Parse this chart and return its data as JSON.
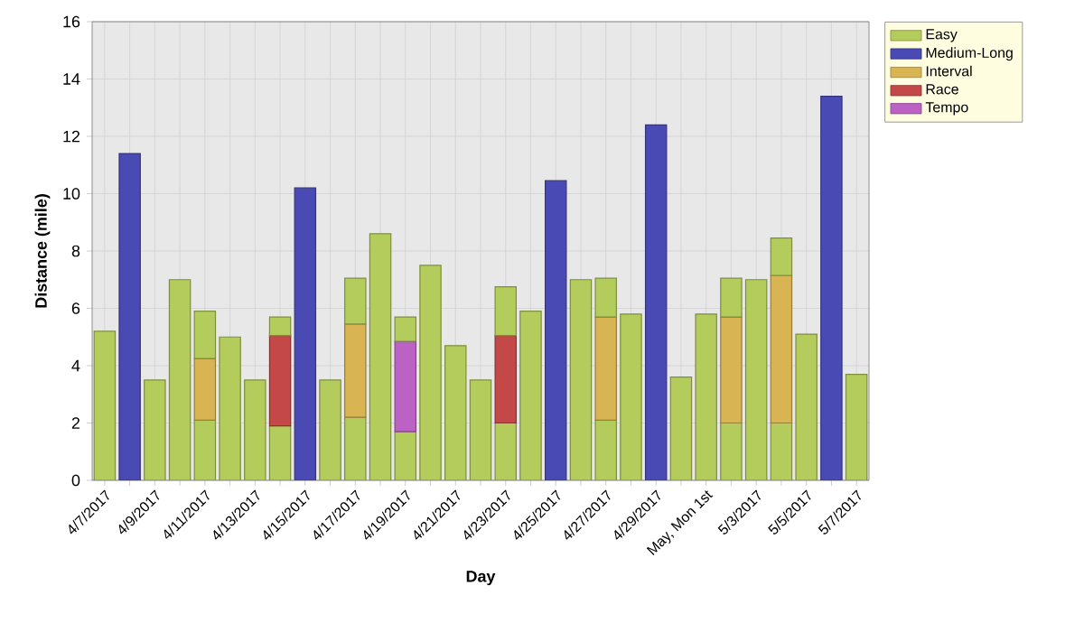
{
  "chart_data": {
    "type": "bar",
    "stacked": true,
    "xlabel": "Day",
    "ylabel": "Distance (mile)",
    "categories": [
      "4/7/2017",
      null,
      "4/9/2017",
      null,
      "4/11/2017",
      null,
      "4/13/2017",
      null,
      "4/15/2017",
      null,
      "4/17/2017",
      null,
      "4/19/2017",
      null,
      "4/21/2017",
      null,
      "4/23/2017",
      null,
      "4/25/2017",
      null,
      "4/27/2017",
      null,
      "4/29/2017",
      null,
      "May, Mon 1st",
      null,
      "5/3/2017",
      null,
      "5/5/2017",
      null,
      "5/7/2017"
    ],
    "series": [
      {
        "name": "Easy",
        "color": "#b4cc5c",
        "values": [
          5.2,
          null,
          3.5,
          7.0,
          2.1,
          5.0,
          3.5,
          1.9,
          null,
          3.5,
          2.2,
          8.6,
          1.7,
          7.5,
          4.7,
          3.5,
          2.0,
          5.9,
          null,
          7.0,
          2.1,
          5.8,
          null,
          3.6,
          5.8,
          2.0,
          7.0,
          2.0,
          5.1,
          null,
          3.7
        ]
      },
      {
        "name": "Medium-Long",
        "color": "#4a4ab4",
        "values": [
          null,
          11.4,
          null,
          null,
          null,
          null,
          null,
          null,
          10.2,
          null,
          null,
          null,
          null,
          null,
          null,
          null,
          null,
          null,
          10.45,
          null,
          null,
          null,
          12.4,
          null,
          null,
          null,
          null,
          null,
          null,
          13.4,
          null
        ]
      },
      {
        "name": "Interval",
        "color": "#d8b452",
        "values": [
          null,
          null,
          null,
          null,
          2.15,
          null,
          null,
          null,
          null,
          null,
          3.25,
          null,
          null,
          null,
          null,
          null,
          null,
          null,
          null,
          null,
          3.6,
          null,
          null,
          null,
          null,
          3.7,
          null,
          5.15,
          null,
          null,
          null
        ]
      },
      {
        "name": "Race",
        "color": "#c44848",
        "values": [
          null,
          null,
          null,
          null,
          null,
          null,
          null,
          3.15,
          null,
          null,
          null,
          null,
          null,
          null,
          null,
          null,
          3.05,
          null,
          null,
          null,
          null,
          null,
          null,
          null,
          null,
          null,
          null,
          null,
          null,
          null,
          null
        ]
      },
      {
        "name": "Tempo",
        "color": "#bb62c4",
        "values": [
          null,
          null,
          null,
          null,
          null,
          null,
          null,
          null,
          null,
          null,
          null,
          null,
          3.15,
          null,
          null,
          null,
          null,
          null,
          null,
          null,
          null,
          null,
          null,
          null,
          null,
          null,
          null,
          null,
          null,
          null,
          null
        ]
      },
      {
        "color": "#b4cc5c",
        "values": [
          null,
          null,
          null,
          null,
          1.65,
          null,
          null,
          0.65,
          null,
          null,
          1.6,
          null,
          0.85,
          null,
          null,
          null,
          1.7,
          null,
          null,
          null,
          1.35,
          null,
          null,
          null,
          null,
          1.35,
          null,
          1.3,
          null,
          null,
          null
        ]
      }
    ],
    "ylim": [
      0,
      16
    ],
    "yticks": [
      0,
      2,
      4,
      6,
      8,
      10,
      12,
      14,
      16
    ],
    "grid": true,
    "legend": "top right"
  }
}
